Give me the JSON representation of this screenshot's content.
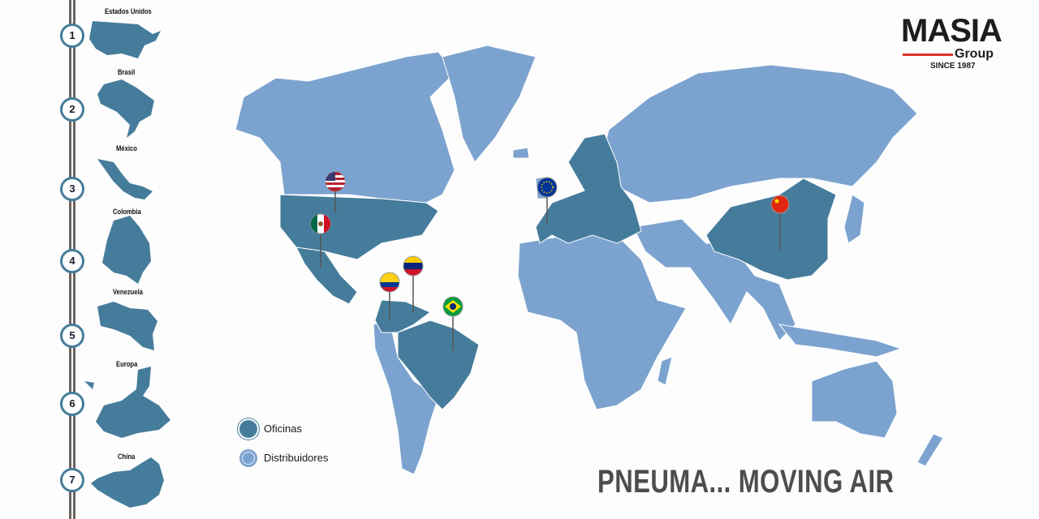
{
  "brand": {
    "name": "MASIA",
    "sub": "Group",
    "since": "SINCE 1987",
    "accent": "#d9332b"
  },
  "colors": {
    "offices": "#467c9b",
    "distributors": "#7ca3cf"
  },
  "timeline": [
    {
      "number": "1",
      "label": "Estados Unidos"
    },
    {
      "number": "2",
      "label": "Brasil"
    },
    {
      "number": "3",
      "label": "México"
    },
    {
      "number": "4",
      "label": "Colombia"
    },
    {
      "number": "5",
      "label": "Venezuela"
    },
    {
      "number": "6",
      "label": "Europa"
    },
    {
      "number": "7",
      "label": "China"
    }
  ],
  "legend": [
    {
      "label": "Oficinas",
      "type": "offices"
    },
    {
      "label": "Distribuidores",
      "type": "distributors"
    }
  ],
  "pins": [
    {
      "country": "usa",
      "flag": "us-flag-icon"
    },
    {
      "country": "mexico",
      "flag": "mexico-flag-icon"
    },
    {
      "country": "colombia",
      "flag": "colombia-flag-icon"
    },
    {
      "country": "venezuela",
      "flag": "venezuela-flag-icon"
    },
    {
      "country": "brazil",
      "flag": "brazil-flag-icon"
    },
    {
      "country": "europe",
      "flag": "eu-flag-icon"
    },
    {
      "country": "china",
      "flag": "china-flag-icon"
    }
  ],
  "slogan": "PNEUMA... MOVING AIR"
}
